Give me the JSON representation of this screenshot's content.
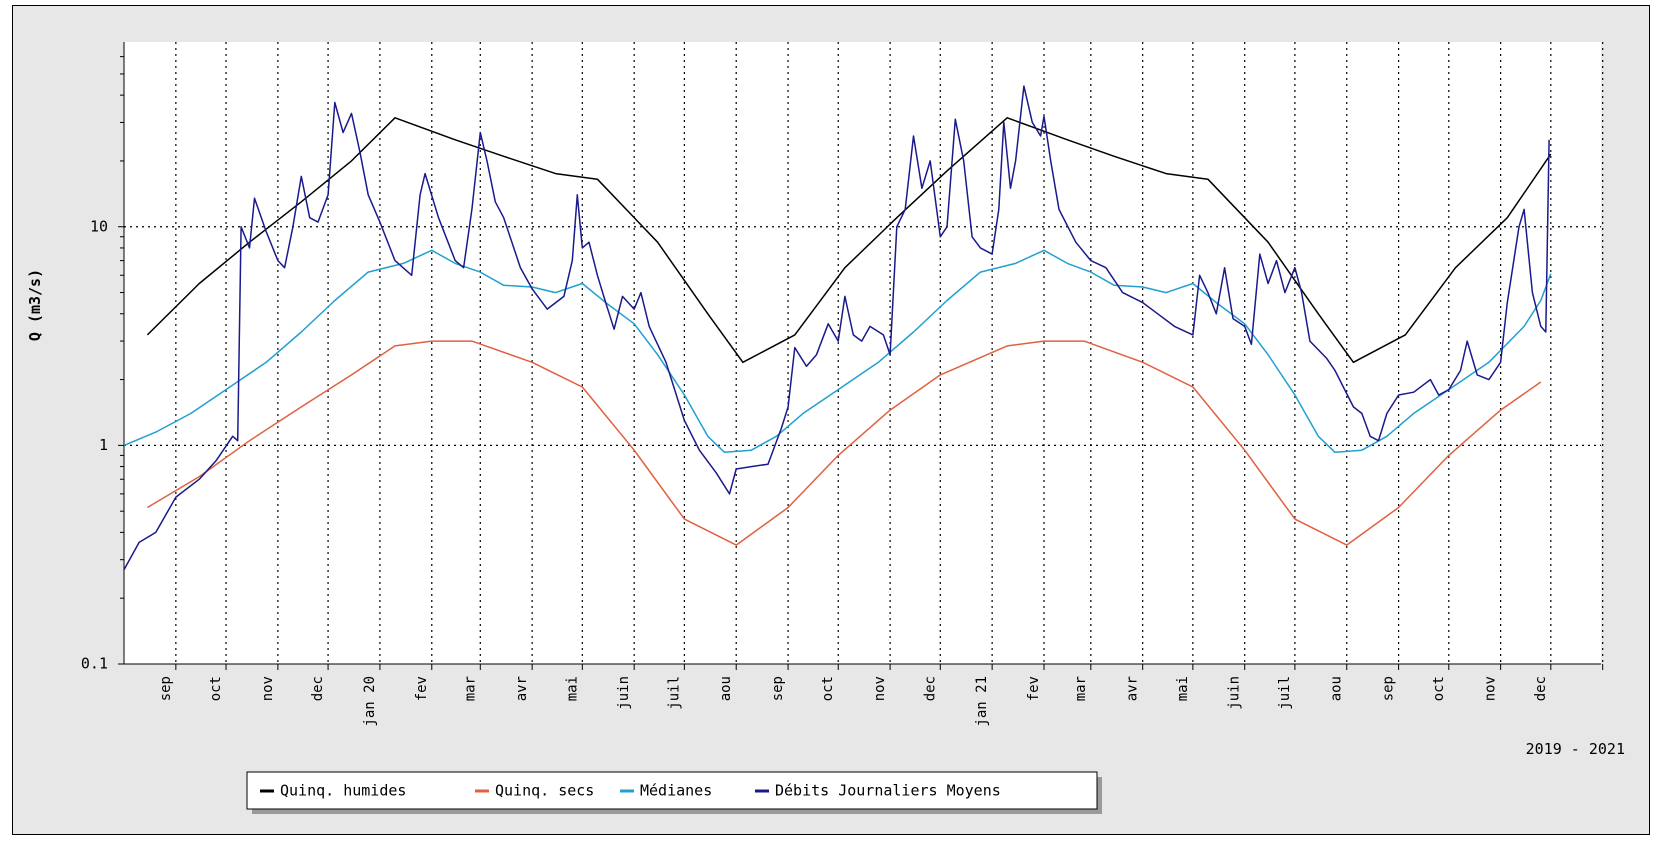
{
  "chart_data": {
    "type": "line",
    "title": "",
    "ylabel": "Q (m3/s)",
    "xlabel": "",
    "y_scale": "log",
    "ylim": [
      0.1,
      70
    ],
    "xlim": [
      "2019-08-01",
      "2021-12-31"
    ],
    "grid": true,
    "legend_placement": "bottom-left",
    "period_label": "2019 - 2021",
    "y_ticks": [
      {
        "value": 0.1,
        "label": "0.1"
      },
      {
        "value": 1,
        "label": "1"
      },
      {
        "value": 10,
        "label": "10"
      }
    ],
    "x_ticks": [
      {
        "date": "2019-09-01",
        "label": "sep"
      },
      {
        "date": "2019-10-01",
        "label": "oct"
      },
      {
        "date": "2019-11-01",
        "label": "nov"
      },
      {
        "date": "2019-12-01",
        "label": "dec"
      },
      {
        "date": "2020-01-01",
        "label": "jan 20"
      },
      {
        "date": "2020-02-01",
        "label": "fev"
      },
      {
        "date": "2020-03-01",
        "label": "mar"
      },
      {
        "date": "2020-04-01",
        "label": "avr"
      },
      {
        "date": "2020-05-01",
        "label": "mai"
      },
      {
        "date": "2020-06-01",
        "label": "juin"
      },
      {
        "date": "2020-07-01",
        "label": "juil"
      },
      {
        "date": "2020-08-01",
        "label": "aou"
      },
      {
        "date": "2020-09-01",
        "label": "sep"
      },
      {
        "date": "2020-10-01",
        "label": "oct"
      },
      {
        "date": "2020-11-01",
        "label": "nov"
      },
      {
        "date": "2020-12-01",
        "label": "dec"
      },
      {
        "date": "2021-01-01",
        "label": "jan 21"
      },
      {
        "date": "2021-02-01",
        "label": "fev"
      },
      {
        "date": "2021-03-01",
        "label": "mar"
      },
      {
        "date": "2021-04-01",
        "label": "avr"
      },
      {
        "date": "2021-05-01",
        "label": "mai"
      },
      {
        "date": "2021-06-01",
        "label": "juin"
      },
      {
        "date": "2021-07-01",
        "label": "juil"
      },
      {
        "date": "2021-08-01",
        "label": "aou"
      },
      {
        "date": "2021-09-01",
        "label": "sep"
      },
      {
        "date": "2021-10-01",
        "label": "oct"
      },
      {
        "date": "2021-11-01",
        "label": "nov"
      },
      {
        "date": "2021-12-01",
        "label": "dec"
      },
      {
        "date": "2022-01-01",
        "label": ""
      }
    ],
    "series": [
      {
        "name": "Quinq. humides",
        "color": "#000000",
        "points": [
          [
            "2019-08-15",
            3.2
          ],
          [
            "2019-09-15",
            5.5
          ],
          [
            "2019-10-15",
            8.5
          ],
          [
            "2019-11-15",
            13.0
          ],
          [
            "2019-12-15",
            20.0
          ],
          [
            "2020-01-10",
            31.5
          ],
          [
            "2020-02-15",
            25.0
          ],
          [
            "2020-03-15",
            21.0
          ],
          [
            "2020-04-15",
            17.5
          ],
          [
            "2020-05-10",
            16.5
          ],
          [
            "2020-06-15",
            8.5
          ],
          [
            "2020-07-15",
            4.0
          ],
          [
            "2020-08-05",
            2.4
          ],
          [
            "2020-09-05",
            3.2
          ],
          [
            "2020-10-05",
            6.5
          ],
          [
            "2020-11-05",
            11.0
          ],
          [
            "2020-12-05",
            18.0
          ],
          [
            "2021-01-10",
            31.5
          ],
          [
            "2021-02-15",
            25.0
          ],
          [
            "2021-03-15",
            21.0
          ],
          [
            "2021-04-15",
            17.5
          ],
          [
            "2021-05-10",
            16.5
          ],
          [
            "2021-06-15",
            8.5
          ],
          [
            "2021-07-15",
            4.0
          ],
          [
            "2021-08-05",
            2.4
          ],
          [
            "2021-09-05",
            3.2
          ],
          [
            "2021-10-05",
            6.5
          ],
          [
            "2021-11-05",
            11.0
          ],
          [
            "2021-12-01",
            21.5
          ]
        ]
      },
      {
        "name": "Quinq. secs",
        "color": "#e06040",
        "points": [
          [
            "2019-08-15",
            0.52
          ],
          [
            "2019-09-15",
            0.72
          ],
          [
            "2019-10-15",
            1.05
          ],
          [
            "2019-11-15",
            1.5
          ],
          [
            "2019-12-15",
            2.1
          ],
          [
            "2020-01-10",
            2.85
          ],
          [
            "2020-02-01",
            3.0
          ],
          [
            "2020-02-25",
            3.0
          ],
          [
            "2020-04-01",
            2.4
          ],
          [
            "2020-05-01",
            1.85
          ],
          [
            "2020-06-01",
            0.95
          ],
          [
            "2020-07-01",
            0.46
          ],
          [
            "2020-08-01",
            0.35
          ],
          [
            "2020-09-01",
            0.52
          ],
          [
            "2020-10-01",
            0.9
          ],
          [
            "2020-11-01",
            1.45
          ],
          [
            "2020-12-01",
            2.1
          ],
          [
            "2021-01-10",
            2.85
          ],
          [
            "2021-02-01",
            3.0
          ],
          [
            "2021-02-25",
            3.0
          ],
          [
            "2021-04-01",
            2.4
          ],
          [
            "2021-05-01",
            1.85
          ],
          [
            "2021-06-01",
            0.95
          ],
          [
            "2021-07-01",
            0.46
          ],
          [
            "2021-08-01",
            0.35
          ],
          [
            "2021-09-01",
            0.52
          ],
          [
            "2021-10-01",
            0.9
          ],
          [
            "2021-11-01",
            1.45
          ],
          [
            "2021-11-25",
            1.95
          ]
        ]
      },
      {
        "name": "Médianes",
        "color": "#20a0d0",
        "points": [
          [
            "2019-08-01",
            1.0
          ],
          [
            "2019-08-20",
            1.15
          ],
          [
            "2019-09-10",
            1.4
          ],
          [
            "2019-10-01",
            1.8
          ],
          [
            "2019-10-25",
            2.4
          ],
          [
            "2019-11-15",
            3.3
          ],
          [
            "2019-12-05",
            4.6
          ],
          [
            "2019-12-25",
            6.2
          ],
          [
            "2020-01-15",
            6.8
          ],
          [
            "2020-02-01",
            7.8
          ],
          [
            "2020-02-15",
            6.8
          ],
          [
            "2020-03-01",
            6.2
          ],
          [
            "2020-03-15",
            5.4
          ],
          [
            "2020-04-01",
            5.3
          ],
          [
            "2020-04-15",
            5.0
          ],
          [
            "2020-05-01",
            5.5
          ],
          [
            "2020-05-15",
            4.5
          ],
          [
            "2020-06-01",
            3.6
          ],
          [
            "2020-06-15",
            2.6
          ],
          [
            "2020-07-01",
            1.7
          ],
          [
            "2020-07-15",
            1.1
          ],
          [
            "2020-07-25",
            0.93
          ],
          [
            "2020-08-10",
            0.95
          ],
          [
            "2020-08-25",
            1.1
          ],
          [
            "2020-09-10",
            1.4
          ],
          [
            "2020-10-01",
            1.8
          ],
          [
            "2020-10-25",
            2.4
          ],
          [
            "2020-11-15",
            3.3
          ],
          [
            "2020-12-05",
            4.6
          ],
          [
            "2020-12-25",
            6.2
          ],
          [
            "2021-01-15",
            6.8
          ],
          [
            "2021-02-01",
            7.8
          ],
          [
            "2021-02-15",
            6.8
          ],
          [
            "2021-03-01",
            6.2
          ],
          [
            "2021-03-15",
            5.4
          ],
          [
            "2021-04-01",
            5.3
          ],
          [
            "2021-04-15",
            5.0
          ],
          [
            "2021-05-01",
            5.5
          ],
          [
            "2021-05-15",
            4.5
          ],
          [
            "2021-06-01",
            3.6
          ],
          [
            "2021-06-15",
            2.6
          ],
          [
            "2021-07-01",
            1.7
          ],
          [
            "2021-07-15",
            1.1
          ],
          [
            "2021-07-25",
            0.93
          ],
          [
            "2021-08-10",
            0.95
          ],
          [
            "2021-08-25",
            1.1
          ],
          [
            "2021-09-10",
            1.4
          ],
          [
            "2021-10-01",
            1.8
          ],
          [
            "2021-10-25",
            2.4
          ],
          [
            "2021-11-15",
            3.5
          ],
          [
            "2021-11-25",
            4.6
          ],
          [
            "2021-12-01",
            6.1
          ]
        ]
      },
      {
        "name": "Débits Journaliers Moyens",
        "color": "#1a1a8c",
        "points": [
          [
            "2019-08-01",
            0.27
          ],
          [
            "2019-08-10",
            0.36
          ],
          [
            "2019-08-20",
            0.4
          ],
          [
            "2019-09-01",
            0.58
          ],
          [
            "2019-09-15",
            0.7
          ],
          [
            "2019-09-25",
            0.85
          ],
          [
            "2019-10-05",
            1.1
          ],
          [
            "2019-10-08",
            1.05
          ],
          [
            "2019-10-10",
            10.0
          ],
          [
            "2019-10-15",
            8.0
          ],
          [
            "2019-10-18",
            13.5
          ],
          [
            "2019-10-25",
            9.5
          ],
          [
            "2019-11-01",
            7.0
          ],
          [
            "2019-11-05",
            6.5
          ],
          [
            "2019-11-10",
            10.0
          ],
          [
            "2019-11-15",
            17.0
          ],
          [
            "2019-11-20",
            11.0
          ],
          [
            "2019-11-25",
            10.5
          ],
          [
            "2019-12-01",
            14.0
          ],
          [
            "2019-12-05",
            37.0
          ],
          [
            "2019-12-10",
            27.0
          ],
          [
            "2019-12-15",
            33.0
          ],
          [
            "2019-12-20",
            22.0
          ],
          [
            "2019-12-25",
            14.0
          ],
          [
            "2020-01-01",
            10.5
          ],
          [
            "2020-01-10",
            7.0
          ],
          [
            "2020-01-20",
            6.0
          ],
          [
            "2020-01-25",
            14.0
          ],
          [
            "2020-01-28",
            17.5
          ],
          [
            "2020-02-05",
            11.0
          ],
          [
            "2020-02-15",
            7.0
          ],
          [
            "2020-02-20",
            6.5
          ],
          [
            "2020-02-25",
            12.0
          ],
          [
            "2020-03-01",
            27.0
          ],
          [
            "2020-03-05",
            20.0
          ],
          [
            "2020-03-10",
            13.0
          ],
          [
            "2020-03-15",
            11.0
          ],
          [
            "2020-03-25",
            6.5
          ],
          [
            "2020-04-01",
            5.2
          ],
          [
            "2020-04-10",
            4.2
          ],
          [
            "2020-04-20",
            4.8
          ],
          [
            "2020-04-25",
            7.0
          ],
          [
            "2020-04-28",
            14.0
          ],
          [
            "2020-05-01",
            8.0
          ],
          [
            "2020-05-05",
            8.5
          ],
          [
            "2020-05-10",
            6.0
          ],
          [
            "2020-05-15",
            4.5
          ],
          [
            "2020-05-20",
            3.4
          ],
          [
            "2020-05-25",
            4.8
          ],
          [
            "2020-06-01",
            4.2
          ],
          [
            "2020-06-05",
            5.0
          ],
          [
            "2020-06-10",
            3.5
          ],
          [
            "2020-06-20",
            2.4
          ],
          [
            "2020-07-01",
            1.3
          ],
          [
            "2020-07-10",
            0.95
          ],
          [
            "2020-07-20",
            0.75
          ],
          [
            "2020-07-28",
            0.6
          ],
          [
            "2020-08-01",
            0.78
          ],
          [
            "2020-08-10",
            0.8
          ],
          [
            "2020-08-20",
            0.82
          ],
          [
            "2020-08-28",
            1.2
          ],
          [
            "2020-09-01",
            1.5
          ],
          [
            "2020-09-05",
            2.8
          ],
          [
            "2020-09-12",
            2.3
          ],
          [
            "2020-09-18",
            2.6
          ],
          [
            "2020-09-25",
            3.6
          ],
          [
            "2020-10-01",
            3.0
          ],
          [
            "2020-10-05",
            4.8
          ],
          [
            "2020-10-10",
            3.2
          ],
          [
            "2020-10-15",
            3.0
          ],
          [
            "2020-10-20",
            3.5
          ],
          [
            "2020-10-28",
            3.2
          ],
          [
            "2020-11-01",
            2.6
          ],
          [
            "2020-11-05",
            10.0
          ],
          [
            "2020-11-10",
            12.0
          ],
          [
            "2020-11-15",
            26.0
          ],
          [
            "2020-11-20",
            15.0
          ],
          [
            "2020-11-25",
            20.0
          ],
          [
            "2020-12-01",
            9.0
          ],
          [
            "2020-12-05",
            10.0
          ],
          [
            "2020-12-10",
            31.0
          ],
          [
            "2020-12-15",
            20.0
          ],
          [
            "2020-12-20",
            9.0
          ],
          [
            "2020-12-25",
            8.0
          ],
          [
            "2021-01-01",
            7.5
          ],
          [
            "2021-01-05",
            12.0
          ],
          [
            "2021-01-08",
            30.0
          ],
          [
            "2021-01-12",
            15.0
          ],
          [
            "2021-01-15",
            20.0
          ],
          [
            "2021-01-20",
            44.0
          ],
          [
            "2021-01-25",
            30.0
          ],
          [
            "2021-01-30",
            26.0
          ],
          [
            "2021-02-01",
            32.0
          ],
          [
            "2021-02-05",
            20.0
          ],
          [
            "2021-02-10",
            12.0
          ],
          [
            "2021-02-20",
            8.5
          ],
          [
            "2021-03-01",
            7.0
          ],
          [
            "2021-03-10",
            6.5
          ],
          [
            "2021-03-20",
            5.0
          ],
          [
            "2021-04-01",
            4.5
          ],
          [
            "2021-04-10",
            4.0
          ],
          [
            "2021-04-20",
            3.5
          ],
          [
            "2021-05-01",
            3.2
          ],
          [
            "2021-05-05",
            6.0
          ],
          [
            "2021-05-10",
            5.0
          ],
          [
            "2021-05-15",
            4.0
          ],
          [
            "2021-05-20",
            6.5
          ],
          [
            "2021-05-25",
            3.8
          ],
          [
            "2021-06-01",
            3.5
          ],
          [
            "2021-06-05",
            2.9
          ],
          [
            "2021-06-10",
            7.5
          ],
          [
            "2021-06-15",
            5.5
          ],
          [
            "2021-06-20",
            7.0
          ],
          [
            "2021-06-25",
            5.0
          ],
          [
            "2021-07-01",
            6.5
          ],
          [
            "2021-07-05",
            5.0
          ],
          [
            "2021-07-10",
            3.0
          ],
          [
            "2021-07-20",
            2.5
          ],
          [
            "2021-07-25",
            2.2
          ],
          [
            "2021-08-05",
            1.5
          ],
          [
            "2021-08-10",
            1.4
          ],
          [
            "2021-08-15",
            1.1
          ],
          [
            "2021-08-20",
            1.05
          ],
          [
            "2021-08-25",
            1.4
          ],
          [
            "2021-09-01",
            1.7
          ],
          [
            "2021-09-10",
            1.75
          ],
          [
            "2021-09-20",
            2.0
          ],
          [
            "2021-09-25",
            1.7
          ],
          [
            "2021-10-01",
            1.8
          ],
          [
            "2021-10-08",
            2.2
          ],
          [
            "2021-10-12",
            3.0
          ],
          [
            "2021-10-18",
            2.1
          ],
          [
            "2021-10-25",
            2.0
          ],
          [
            "2021-11-01",
            2.4
          ],
          [
            "2021-11-05",
            4.5
          ],
          [
            "2021-11-12",
            10.0
          ],
          [
            "2021-11-15",
            12.0
          ],
          [
            "2021-11-20",
            5.0
          ],
          [
            "2021-11-25",
            3.5
          ],
          [
            "2021-11-28",
            3.3
          ],
          [
            "2021-11-30",
            25.0
          ]
        ]
      }
    ]
  }
}
